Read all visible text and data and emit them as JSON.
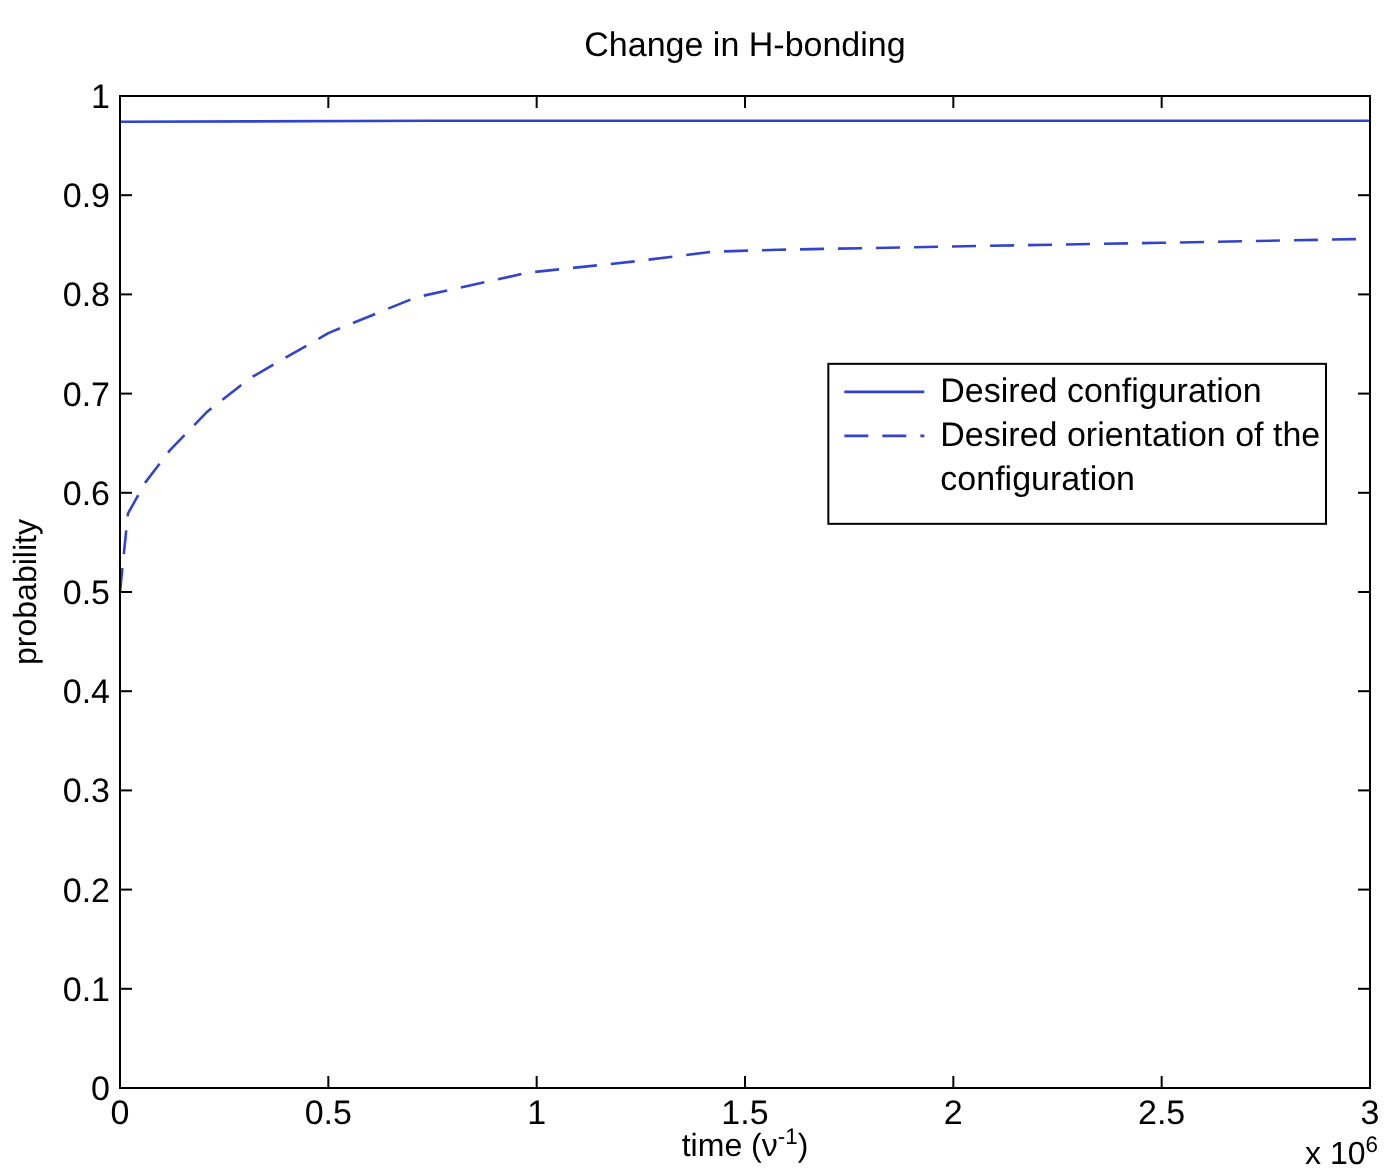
{
  "chart_data": {
    "type": "line",
    "title": "Change in H-bonding",
    "xlabel": "time  (ν$^{-1}$)",
    "ylabel": "probability",
    "annotations": [
      "x 10$^{6}$"
    ],
    "xlim": [
      0,
      3
    ],
    "xticks": [
      0,
      0.5,
      1,
      1.5,
      2,
      2.5,
      3
    ],
    "ylim": [
      0,
      1
    ],
    "yticks": [
      0,
      0.1,
      0.2,
      0.3,
      0.4,
      0.5,
      0.6,
      0.7,
      0.8,
      0.9,
      1
    ],
    "legend": "right",
    "grid": false,
    "series": [
      {
        "name": "Desired configuration",
        "color": "#3344cc",
        "line_style": "solid",
        "x": [
          0,
          0.75,
          1.5,
          3
        ],
        "values": [
          0.974,
          0.975,
          0.975,
          0.975
        ]
      },
      {
        "name": "Desired orientation of the configuration",
        "color": "#3344cc",
        "line_style": "dashed",
        "x": [
          0,
          0.019,
          0.06,
          0.12,
          0.21,
          0.31,
          0.5,
          0.71,
          0.98,
          1.23,
          1.42,
          1.58,
          2.09,
          2.5,
          3
        ],
        "values": [
          0.5,
          0.579,
          0.61,
          0.643,
          0.682,
          0.715,
          0.761,
          0.797,
          0.822,
          0.833,
          0.843,
          0.845,
          0.849,
          0.852,
          0.856
        ]
      }
    ]
  }
}
